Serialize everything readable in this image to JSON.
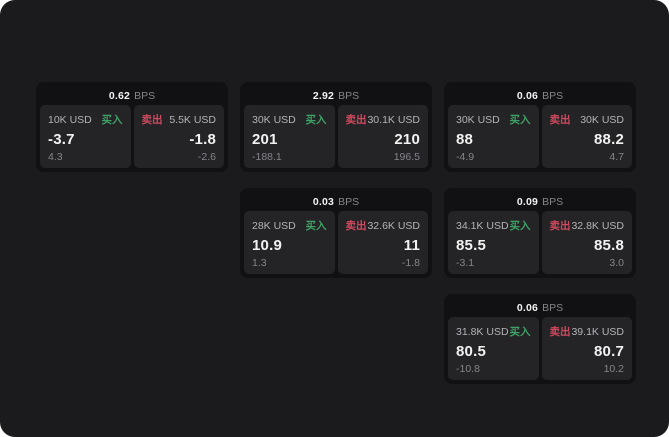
{
  "labels": {
    "buy": "买入",
    "sell": "卖出",
    "bps_unit": "BPS"
  },
  "colors": {
    "app-bg": "#1b1b1d",
    "card-bg": "#111113",
    "panel-bg": "#242427",
    "buy": "#3fa065",
    "sell": "#cf4a5e"
  },
  "cards": [
    {
      "bps": "0.62",
      "buy": {
        "size": "10K USD",
        "value": "-3.7",
        "sub": "4.3"
      },
      "sell": {
        "size": "5.5K USD",
        "value": "-1.8",
        "sub": "-2.6"
      }
    },
    {
      "bps": "2.92",
      "buy": {
        "size": "30K USD",
        "value": "201",
        "sub": "-188.1"
      },
      "sell": {
        "size": "30.1K USD",
        "value": "210",
        "sub": "196.5"
      }
    },
    {
      "bps": "0.06",
      "buy": {
        "size": "30K USD",
        "value": "88",
        "sub": "-4.9"
      },
      "sell": {
        "size": "30K USD",
        "value": "88.2",
        "sub": "4.7"
      }
    },
    {
      "bps": "0.03",
      "buy": {
        "size": "28K USD",
        "value": "10.9",
        "sub": "1.3"
      },
      "sell": {
        "size": "32.6K USD",
        "value": "11",
        "sub": "-1.8"
      }
    },
    {
      "bps": "0.09",
      "buy": {
        "size": "34.1K USD",
        "value": "85.5",
        "sub": "-3.1"
      },
      "sell": {
        "size": "32.8K USD",
        "value": "85.8",
        "sub": "3.0"
      }
    },
    {
      "bps": "0.06",
      "buy": {
        "size": "31.8K USD",
        "value": "80.5",
        "sub": "-10.8"
      },
      "sell": {
        "size": "39.1K USD",
        "value": "80.7",
        "sub": "10.2"
      }
    }
  ]
}
